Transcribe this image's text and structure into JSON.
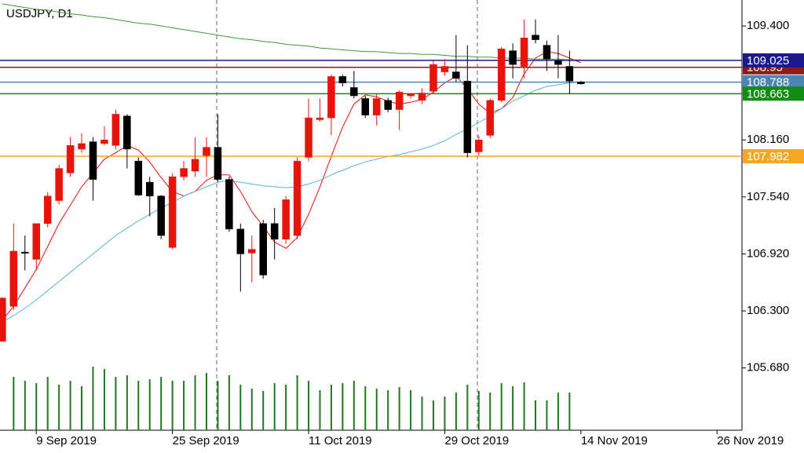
{
  "chart_data": {
    "type": "candlestick",
    "title": "USDJPY, D1",
    "xlim": [
      -0.2,
      65.2
    ],
    "xticks": [
      {
        "value": 3,
        "label": "9 Sep 2019"
      },
      {
        "value": 15,
        "label": "25 Sep 2019"
      },
      {
        "value": 27,
        "label": "11 Oct 2019"
      },
      {
        "value": 39,
        "label": "29 Oct 2019"
      },
      {
        "value": 51,
        "label": "14 Nov 2019"
      },
      {
        "value": 63,
        "label": "26 Nov 2019"
      }
    ],
    "ylim": [
      105.002,
      109.682
    ],
    "yticks": [
      {
        "value": 109.4,
        "label": "109.400"
      },
      {
        "value": 108.16,
        "label": "108.160"
      },
      {
        "value": 107.54,
        "label": "107.540"
      },
      {
        "value": 106.92,
        "label": "106.920"
      },
      {
        "value": 106.3,
        "label": "106.300"
      },
      {
        "value": 105.68,
        "label": "105.680"
      }
    ],
    "up_color": "#e8140c",
    "down_color": "#000000",
    "open": [
      105.97,
      106.35,
      106.94,
      106.86,
      107.25,
      107.5,
      107.8,
      108.06,
      108.14,
      108.12,
      108.1,
      108.42,
      107.93,
      107.7,
      107.55,
      106.99,
      107.76,
      107.82,
      107.99,
      108.08,
      107.73,
      107.19,
      106.93,
      107.25,
      107.25,
      107.08,
      107.12,
      107.97,
      108.38,
      108.4,
      108.85,
      108.73,
      108.61,
      108.43,
      108.59,
      108.49,
      108.64,
      108.59,
      108.69,
      108.9,
      108.9,
      108.8,
      108.03,
      108.21,
      108.59,
      109.13,
      108.96,
      109.3,
      109.19,
      109.02,
      108.96,
      108.79
    ],
    "high": [
      106.45,
      107.25,
      107.12,
      107.25,
      107.59,
      107.89,
      108.19,
      108.23,
      108.19,
      108.31,
      108.49,
      108.44,
      107.97,
      107.76,
      107.56,
      107.8,
      107.93,
      108.19,
      108.19,
      108.44,
      107.76,
      107.25,
      107.12,
      107.29,
      107.42,
      107.55,
      107.97,
      108.61,
      108.61,
      108.87,
      108.87,
      108.91,
      108.64,
      108.66,
      108.62,
      108.7,
      108.67,
      108.72,
      109.02,
      109.04,
      109.3,
      109.19,
      108.21,
      108.61,
      109.17,
      109.21,
      109.47,
      109.47,
      109.24,
      109.3,
      109.13,
      108.8
    ],
    "low": [
      105.97,
      106.31,
      106.74,
      106.74,
      107.21,
      107.46,
      107.76,
      108.02,
      107.5,
      108.1,
      108.06,
      107.85,
      107.55,
      107.33,
      107.08,
      106.97,
      107.72,
      107.76,
      107.76,
      107.7,
      107.16,
      106.51,
      106.61,
      106.65,
      106.86,
      107.03,
      107.08,
      107.93,
      108.36,
      108.21,
      108.74,
      108.61,
      108.4,
      108.32,
      108.46,
      108.27,
      108.61,
      108.55,
      108.67,
      108.86,
      108.79,
      107.97,
      107.99,
      108.18,
      108.57,
      108.83,
      108.83,
      109.21,
      108.91,
      108.83,
      108.66,
      108.76
    ],
    "close": [
      106.44,
      106.95,
      106.93,
      107.25,
      107.55,
      107.85,
      108.1,
      108.12,
      107.73,
      108.16,
      108.44,
      108.06,
      107.56,
      107.55,
      107.12,
      107.76,
      107.85,
      107.95,
      108.08,
      107.73,
      107.19,
      106.92,
      106.97,
      106.69,
      107.08,
      107.51,
      107.93,
      108.4,
      108.4,
      108.85,
      108.78,
      108.64,
      108.43,
      108.61,
      108.49,
      108.68,
      108.66,
      108.67,
      108.98,
      108.96,
      108.83,
      108.02,
      108.16,
      108.59,
      109.15,
      108.98,
      109.27,
      109.25,
      109.04,
      108.98,
      108.8,
      108.77
    ],
    "lines": [
      {
        "color": "#e8140c",
        "values": [
          106.2,
          106.35,
          106.55,
          106.75,
          107.0,
          107.25,
          107.45,
          107.65,
          107.8,
          107.95,
          108.02,
          108.1,
          108.05,
          107.92,
          107.75,
          107.6,
          107.55,
          107.6,
          107.72,
          107.78,
          107.78,
          107.6,
          107.38,
          107.22,
          107.05,
          106.98,
          107.1,
          107.35,
          107.65,
          107.98,
          108.3,
          108.55,
          108.65,
          108.63,
          108.58,
          108.55,
          108.57,
          108.6,
          108.68,
          108.78,
          108.85,
          108.72,
          108.55,
          108.45,
          108.5,
          108.62,
          108.88,
          109.05,
          109.12,
          109.1,
          109.05,
          109.0
        ]
      },
      {
        "color": "#5ab4dc",
        "values": [
          106.18,
          106.25,
          106.33,
          106.42,
          106.52,
          106.62,
          106.72,
          106.82,
          106.92,
          107.02,
          107.12,
          107.2,
          107.28,
          107.35,
          107.42,
          107.48,
          107.55,
          107.6,
          107.65,
          107.7,
          107.72,
          107.7,
          107.68,
          107.66,
          107.65,
          107.64,
          107.65,
          107.68,
          107.72,
          107.78,
          107.83,
          107.88,
          107.92,
          107.95,
          107.98,
          108.0,
          108.03,
          108.06,
          108.1,
          108.15,
          108.22,
          108.28,
          108.35,
          108.42,
          108.5,
          108.58,
          108.64,
          108.7,
          108.74,
          108.76,
          108.78,
          108.79
        ]
      },
      {
        "color": "#3c9a3c",
        "values": [
          109.64,
          109.62,
          109.6,
          109.58,
          109.57,
          109.55,
          109.53,
          109.52,
          109.5,
          109.49,
          109.47,
          109.45,
          109.43,
          109.42,
          109.4,
          109.38,
          109.36,
          109.34,
          109.32,
          109.3,
          109.28,
          109.26,
          109.25,
          109.23,
          109.22,
          109.2,
          109.19,
          109.18,
          109.16,
          109.15,
          109.14,
          109.13,
          109.12,
          109.12,
          109.11,
          109.1,
          109.1,
          109.09,
          109.09,
          109.08,
          109.07,
          109.07,
          109.06,
          109.06,
          109.05,
          109.05,
          109.05,
          109.04,
          109.04,
          109.04,
          109.03,
          109.03
        ]
      }
    ],
    "volume": {
      "color": "#1f7a1f",
      "values": [
        null,
        68,
        63,
        60,
        68,
        58,
        63,
        56,
        81,
        78,
        68,
        70,
        63,
        65,
        68,
        63,
        63,
        70,
        73,
        63,
        70,
        58,
        53,
        50,
        60,
        58,
        70,
        63,
        51,
        58,
        60,
        63,
        56,
        53,
        51,
        55,
        51,
        43,
        38,
        43,
        48,
        58,
        50,
        48,
        60,
        56,
        61,
        38,
        38,
        48,
        48,
        null
      ]
    },
    "levels": [
      {
        "value": 108.95,
        "color": "#8b1a1a"
      },
      {
        "value": 109.025,
        "color": "#1a1a8c"
      },
      {
        "value": 108.788,
        "color": "#4a86b4"
      },
      {
        "value": 108.663,
        "color": "#128c12"
      },
      {
        "value": 107.982,
        "color": "#f5a623"
      }
    ]
  }
}
